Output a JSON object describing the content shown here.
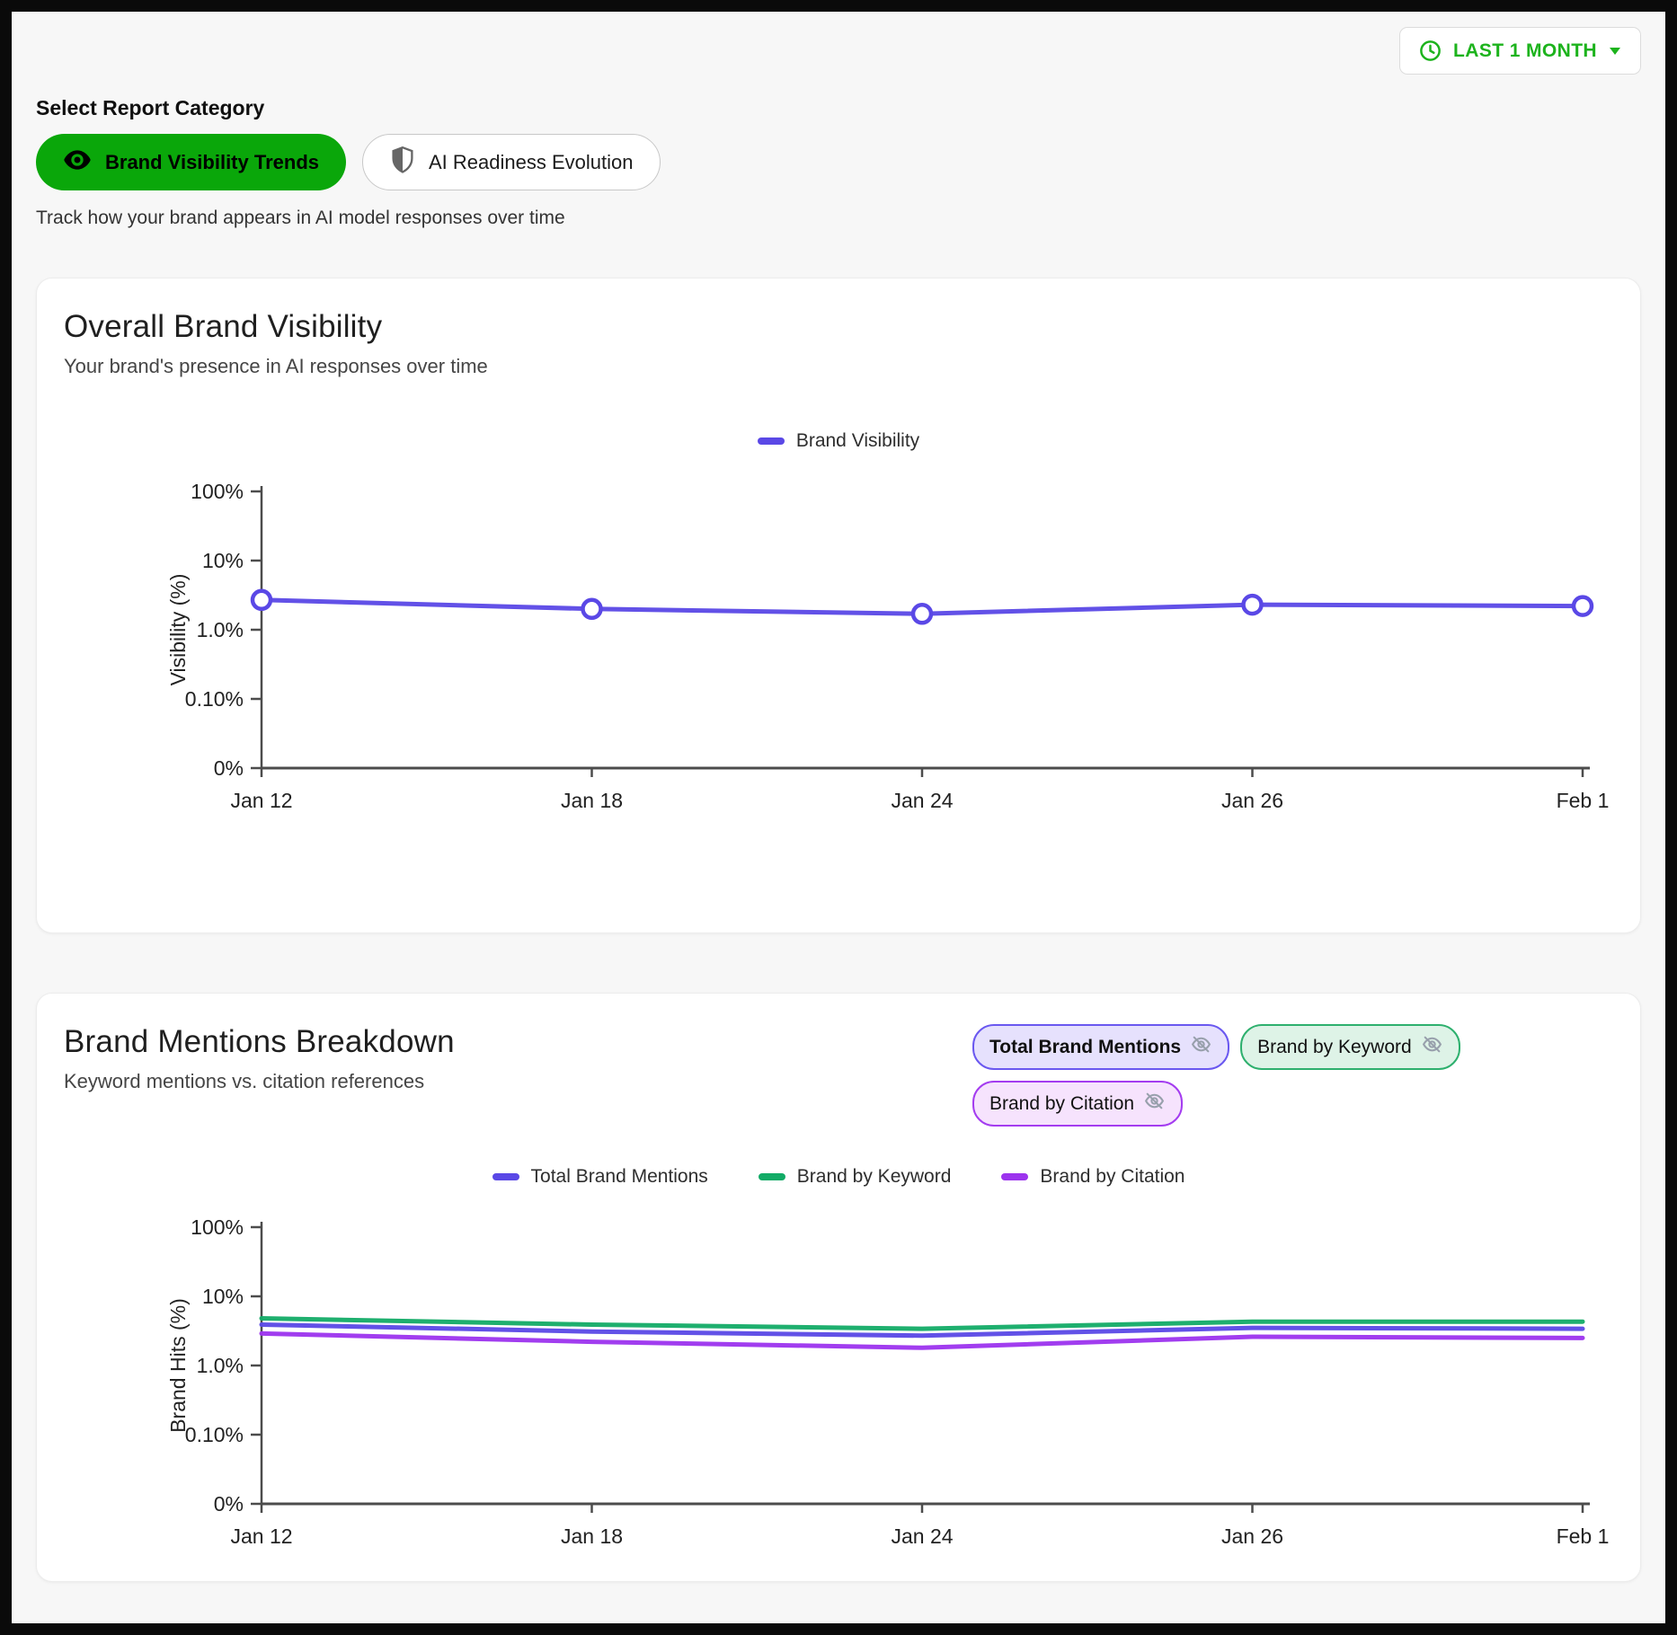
{
  "time_range": {
    "label": "LAST 1 MONTH",
    "icon": "clock-icon",
    "caret": "caret-down-icon"
  },
  "category": {
    "heading": "Select Report Category",
    "buttons": [
      {
        "label": "Brand Visibility Trends",
        "icon": "eye-icon",
        "active": true
      },
      {
        "label": "AI Readiness Evolution",
        "icon": "shield-icon",
        "active": false
      }
    ],
    "description": "Track how your brand appears in AI model responses over time"
  },
  "visibility_card": {
    "title": "Overall Brand Visibility",
    "subtitle": "Your brand's presence in AI responses over time",
    "legend": [
      "Brand Visibility"
    ]
  },
  "mentions_card": {
    "title": "Brand Mentions Breakdown",
    "subtitle": "Keyword mentions vs. citation references",
    "toggles": [
      {
        "label": "Total Brand Mentions",
        "icon": "eye-off-icon"
      },
      {
        "label": "Brand by Keyword",
        "icon": "eye-off-icon"
      },
      {
        "label": "Brand by Citation",
        "icon": "eye-off-icon"
      }
    ],
    "legend": [
      "Total Brand Mentions",
      "Brand by Keyword",
      "Brand by Citation"
    ]
  },
  "colors": {
    "active_tab_green": "#0aa70a",
    "time_range_green": "#1db31d",
    "brand_visibility_line": "#5a48e6",
    "total_mentions_line": "#5a48e6",
    "keyword_line": "#12ab66",
    "citation_line": "#9c33ee",
    "pill_total_border": "#6a58f0",
    "pill_keyword_border": "#2eb06e",
    "pill_citation_border": "#a43cf0",
    "axis": "#4c4c4c"
  },
  "chart_data": [
    {
      "type": "line",
      "title": "Overall Brand Visibility",
      "x": [
        "Jan 12",
        "Jan 18",
        "Jan 24",
        "Jan 26",
        "Feb 1"
      ],
      "xlabel": "",
      "ylabel": "Visibility (%)",
      "yscale": "log",
      "yticks": [
        "100%",
        "10%",
        "1.0%",
        "0.10%",
        "0%"
      ],
      "ylim": [
        0,
        100
      ],
      "grid": false,
      "legend_position": "top-center",
      "series": [
        {
          "name": "Brand Visibility",
          "color": "#5a48e6",
          "marker": "circle-open",
          "values": [
            2.7,
            2.0,
            1.7,
            2.3,
            2.2
          ]
        }
      ]
    },
    {
      "type": "line",
      "title": "Brand Mentions Breakdown",
      "x": [
        "Jan 12",
        "Jan 18",
        "Jan 24",
        "Jan 26",
        "Feb 1"
      ],
      "xlabel": "",
      "ylabel": "Brand Hits (%)",
      "yscale": "log",
      "yticks": [
        "100%",
        "10%",
        "1.0%",
        "0.10%",
        "0%"
      ],
      "ylim": [
        0,
        100
      ],
      "grid": false,
      "legend_position": "top-center",
      "series": [
        {
          "name": "Total Brand Mentions",
          "color": "#5a48e6",
          "marker": "none",
          "values": [
            3.9,
            3.1,
            2.7,
            3.5,
            3.4
          ]
        },
        {
          "name": "Brand by Keyword",
          "color": "#12ab66",
          "marker": "none",
          "values": [
            4.8,
            3.9,
            3.4,
            4.3,
            4.3
          ]
        },
        {
          "name": "Brand by Citation",
          "color": "#9c33ee",
          "marker": "none",
          "values": [
            2.9,
            2.2,
            1.8,
            2.6,
            2.5
          ]
        }
      ]
    }
  ]
}
